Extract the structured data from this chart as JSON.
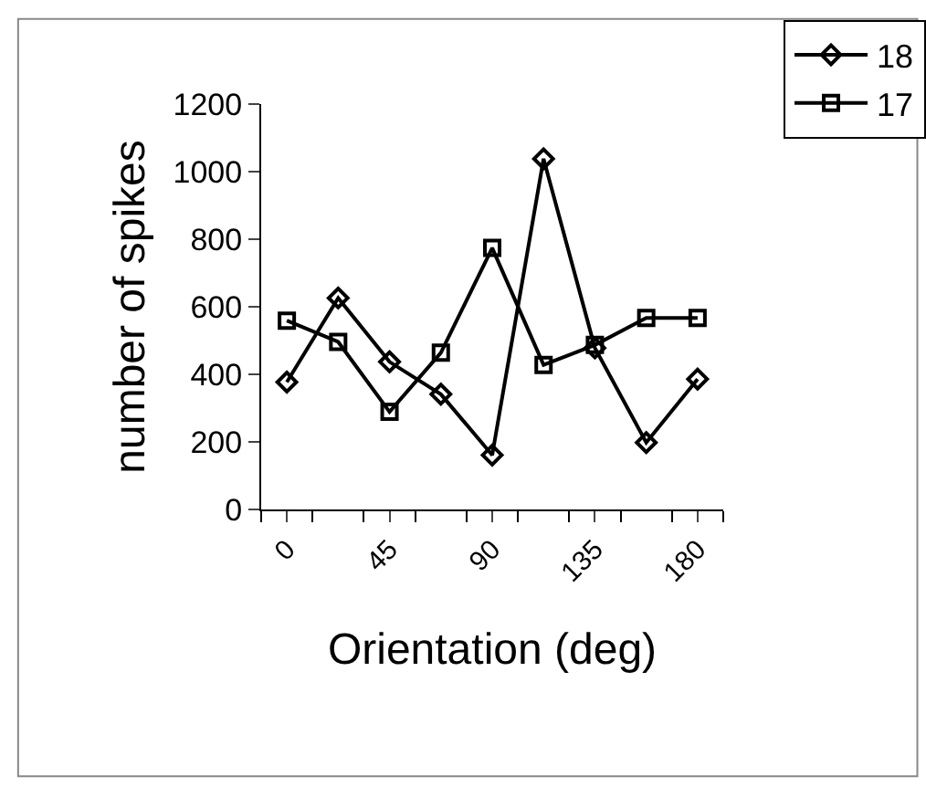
{
  "chart_data": {
    "type": "line",
    "xlabel": "Orientation (deg)",
    "ylabel": "number of spikes",
    "categories": [
      "0",
      null,
      "45",
      null,
      "90",
      null,
      "135",
      null,
      "180"
    ],
    "series": [
      {
        "name": "18",
        "color": "#000000",
        "marker": "diamond",
        "values": [
          377,
          626,
          437,
          341,
          161,
          1038,
          478,
          198,
          386
        ]
      },
      {
        "name": "17",
        "color": "#000000",
        "marker": "square",
        "values": [
          559,
          496,
          289,
          464,
          774,
          428,
          487,
          567,
          567
        ]
      }
    ],
    "ylim": [
      0,
      1200
    ],
    "yticks": [
      0,
      200,
      400,
      600,
      800,
      1000,
      1200
    ],
    "legend": "top right",
    "line_style": "solid"
  }
}
